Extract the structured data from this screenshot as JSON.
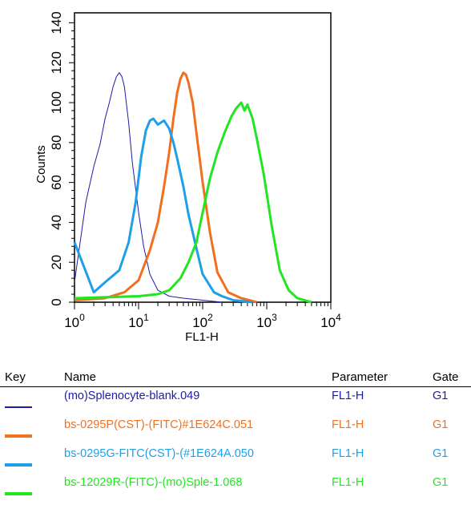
{
  "chart_data": {
    "type": "line",
    "xlabel": "FL1-H",
    "ylabel": "Counts",
    "xscale": "log",
    "xlim": [
      1,
      10000
    ],
    "ylim": [
      0,
      145
    ],
    "x_ticks": [
      {
        "base": "10",
        "exp": "0"
      },
      {
        "base": "10",
        "exp": "1"
      },
      {
        "base": "10",
        "exp": "2"
      },
      {
        "base": "10",
        "exp": "3"
      },
      {
        "base": "10",
        "exp": "4"
      }
    ],
    "y_ticks": [
      "0",
      "20",
      "40",
      "60",
      "80",
      "100",
      "120",
      "140"
    ],
    "series": [
      {
        "name": "(mo)Splenocyte-blank.049",
        "color": "#1c1ca8",
        "stroke_width": 1,
        "x": [
          1,
          1.5,
          2,
          2.5,
          3,
          3.5,
          4,
          4.5,
          5,
          5.5,
          6,
          7,
          8,
          10,
          12,
          15,
          20,
          30,
          50,
          100,
          200
        ],
        "y": [
          10,
          50,
          68,
          79,
          92,
          100,
          108,
          113,
          115,
          113,
          108,
          90,
          70,
          45,
          28,
          14,
          6,
          3,
          2,
          1,
          0
        ]
      },
      {
        "name": "bs-0295P(CST)-(FITC)#1E624C.051",
        "color": "#f07020",
        "stroke_width": 3,
        "x": [
          1,
          3,
          6,
          10,
          15,
          20,
          25,
          30,
          35,
          40,
          45,
          50,
          55,
          60,
          70,
          80,
          100,
          130,
          170,
          250,
          400,
          700
        ],
        "y": [
          1,
          2,
          5,
          11,
          26,
          40,
          58,
          75,
          92,
          105,
          112,
          115,
          114,
          110,
          100,
          85,
          60,
          35,
          15,
          5,
          2,
          0
        ]
      },
      {
        "name": "bs-0295G-FITC(CST)-(#1E624A.050",
        "color": "#1f9fe8",
        "stroke_width": 3,
        "x": [
          1,
          2,
          3,
          5,
          7,
          9,
          11,
          13,
          15,
          17,
          20,
          25,
          30,
          35,
          40,
          50,
          60,
          80,
          100,
          150,
          200,
          300,
          600
        ],
        "y": [
          30,
          5,
          10,
          16,
          30,
          50,
          73,
          86,
          91,
          92,
          89,
          91,
          87,
          80,
          72,
          58,
          44,
          27,
          14,
          5,
          3,
          1,
          0
        ]
      },
      {
        "name": "bs-12029R-(FITC)-(mo)Sple-1.068",
        "color": "#22e622",
        "stroke_width": 3,
        "x": [
          1,
          10,
          20,
          30,
          45,
          60,
          80,
          100,
          130,
          170,
          220,
          280,
          330,
          400,
          450,
          500,
          600,
          700,
          900,
          1200,
          1600,
          2200,
          3000,
          5000
        ],
        "y": [
          2,
          3,
          4,
          6,
          12,
          20,
          30,
          45,
          62,
          75,
          85,
          93,
          97,
          100,
          96,
          99,
          92,
          82,
          64,
          38,
          16,
          6,
          2,
          0
        ]
      }
    ]
  },
  "legend": {
    "headers": {
      "key": "Key",
      "name": "Name",
      "parameter": "Parameter",
      "gate": "Gate"
    },
    "rows": [
      {
        "name": "(mo)Splenocyte-blank.049",
        "parameter": "FL1-H",
        "gate": "G1",
        "color": "#1c1ca8",
        "thickness": 1.5
      },
      {
        "name": "bs-0295P(CST)-(FITC)#1E624C.051",
        "parameter": "FL1-H",
        "gate": "G1",
        "color": "#f07020",
        "thickness": 4
      },
      {
        "name": "bs-0295G-FITC(CST)-(#1E624A.050",
        "parameter": "FL1-H",
        "gate": "G1",
        "color": "#1f9fe8",
        "thickness": 4
      },
      {
        "name": "bs-12029R-(FITC)-(mo)Sple-1.068",
        "parameter": "FL1-H",
        "gate": "G1",
        "color": "#22e622",
        "thickness": 4
      }
    ]
  }
}
